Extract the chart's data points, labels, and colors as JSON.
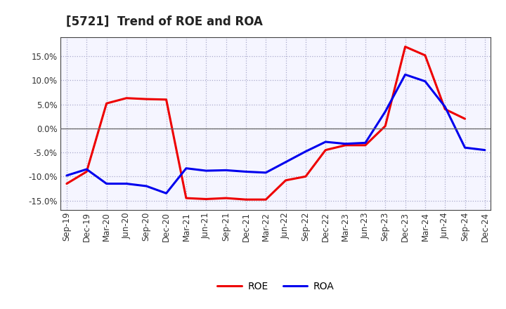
{
  "title": "[5721]  Trend of ROE and ROA",
  "x_labels": [
    "Sep-19",
    "Dec-19",
    "Mar-20",
    "Jun-20",
    "Sep-20",
    "Dec-20",
    "Mar-21",
    "Jun-21",
    "Sep-21",
    "Dec-21",
    "Mar-22",
    "Jun-22",
    "Sep-22",
    "Dec-22",
    "Mar-23",
    "Jun-23",
    "Sep-23",
    "Dec-23",
    "Mar-24",
    "Jun-24",
    "Sep-24",
    "Dec-24"
  ],
  "roe": [
    -11.5,
    -9.0,
    5.2,
    6.3,
    6.1,
    6.0,
    -14.5,
    -14.7,
    -14.5,
    -14.8,
    -14.8,
    -10.8,
    -10.0,
    -4.5,
    -3.5,
    -3.5,
    0.5,
    17.0,
    15.2,
    4.0,
    2.0,
    null
  ],
  "roa": [
    -9.8,
    -8.5,
    -11.5,
    -11.5,
    -12.0,
    -13.5,
    -8.3,
    -8.8,
    -8.7,
    -9.0,
    -9.2,
    -7.0,
    -4.8,
    -2.8,
    -3.2,
    -3.0,
    3.5,
    11.2,
    9.8,
    4.5,
    -4.0,
    -4.5
  ],
  "ylim": [
    -17,
    19
  ],
  "yticks": [
    -15.0,
    -10.0,
    -5.0,
    0.0,
    5.0,
    10.0,
    15.0
  ],
  "roe_color": "#ee0000",
  "roa_color": "#0000ee",
  "background_color": "#ffffff",
  "plot_bg_color": "#f5f5ff",
  "grid_color": "#aaaacc",
  "title_fontsize": 12,
  "axis_fontsize": 8.5,
  "legend_fontsize": 10
}
